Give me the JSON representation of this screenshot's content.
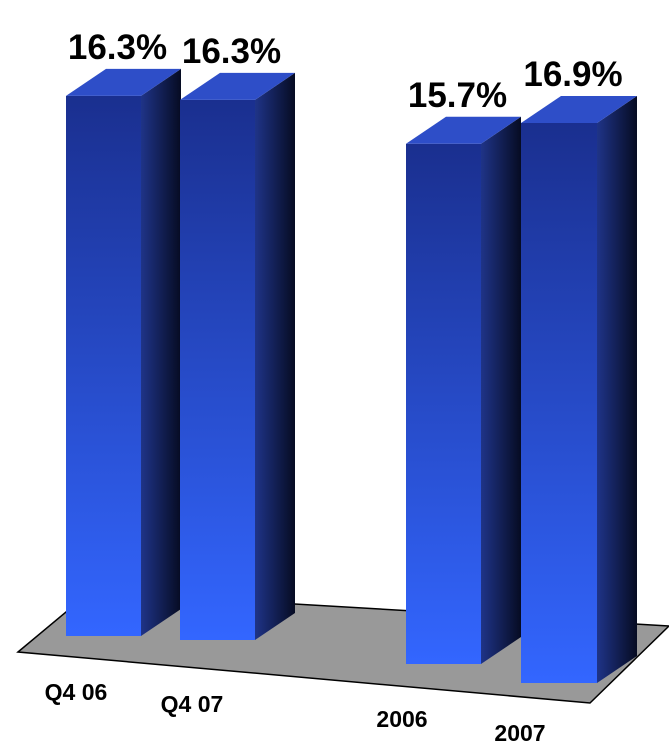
{
  "chart_data": {
    "type": "bar",
    "style": "3d-column",
    "categories": [
      "Q4 06",
      "Q4 07",
      "2006",
      "2007"
    ],
    "values": [
      16.3,
      16.3,
      15.7,
      16.9
    ],
    "value_labels": [
      "16.3%",
      "16.3%",
      "15.7%",
      "16.9%"
    ],
    "unit": "%",
    "title": "",
    "xlabel": "",
    "ylabel": "",
    "ylim": [
      0,
      16.9
    ],
    "grid": false,
    "legend": "none",
    "colors": {
      "bar_front_light": "#3366ff",
      "bar_front_dark": "#1a2f8f",
      "bar_side_light": "#1f3488",
      "bar_side_dark": "#060b22",
      "bar_top": "#2e4ec8",
      "floor": "#999999",
      "floor_edge": "#000000"
    }
  }
}
